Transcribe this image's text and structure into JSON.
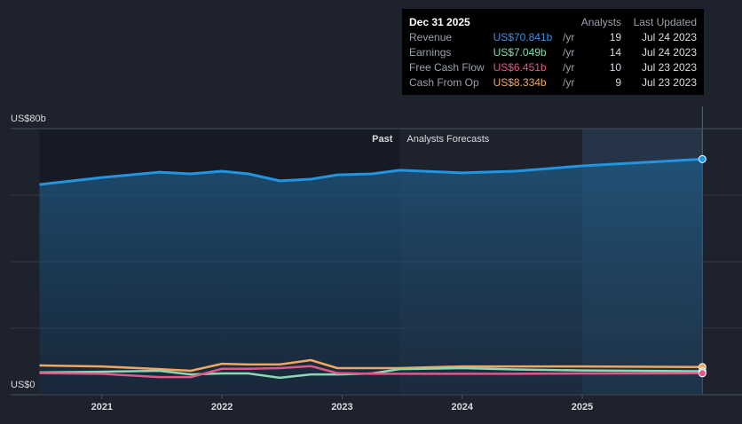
{
  "chart_data": {
    "type": "line",
    "x": [
      2020.48,
      2021,
      2021.48,
      2021.74,
      2022,
      2022.22,
      2022.48,
      2022.74,
      2022.96,
      2023.25,
      2023.48,
      2024,
      2024.44,
      2025,
      2026
    ],
    "series": [
      {
        "name": "Revenue",
        "color": "#2394df",
        "values": [
          63.2,
          65.3,
          66.9,
          66.4,
          67.2,
          66.4,
          64.3,
          64.8,
          66.1,
          66.4,
          67.5,
          66.7,
          67.2,
          68.8,
          70.841
        ]
      },
      {
        "name": "Cash From Op",
        "color": "#f0a860",
        "values": [
          8.8,
          8.5,
          7.7,
          7.2,
          9.3,
          9.1,
          9.1,
          10.4,
          8.0,
          8.0,
          8.0,
          8.5,
          8.5,
          8.5,
          8.334
        ]
      },
      {
        "name": "Earnings",
        "color": "#8fd6b6",
        "values": [
          6.7,
          6.9,
          7.2,
          6.1,
          6.4,
          6.4,
          5.1,
          6.1,
          6.1,
          6.4,
          7.7,
          8.0,
          7.6,
          7.3,
          7.049
        ]
      },
      {
        "name": "Free Cash Flow",
        "color": "#e0588a",
        "values": [
          6.5,
          6.3,
          5.3,
          5.3,
          7.8,
          7.8,
          8.0,
          8.6,
          6.5,
          6.3,
          6.3,
          6.3,
          6.3,
          6.4,
          6.451
        ]
      }
    ],
    "xlim": [
      2020.24,
      2026.33
    ],
    "xticks": [
      2021,
      2022,
      2023,
      2024,
      2025
    ],
    "ylim": [
      0,
      80
    ],
    "yticks": [
      {
        "value": 0,
        "label": "US$0"
      },
      {
        "value": 80,
        "label": "US$80b"
      }
    ],
    "minor_gridlines": [
      20,
      40,
      60
    ],
    "forecast_start": 2023.48,
    "past_label": "Past",
    "forecast_label": "Analysts Forecasts",
    "tooltip": {
      "header": [
        "Dec 31 2025",
        "Analysts",
        "Last Updated"
      ],
      "rows": [
        [
          "Revenue",
          "US$70.841b",
          "/yr",
          "19",
          "Jul 24 2023"
        ],
        [
          "Earnings",
          "US$7.049b",
          "/yr",
          "14",
          "Jul 24 2023"
        ],
        [
          "Free Cash Flow",
          "US$6.451b",
          "/yr",
          "10",
          "Jul 23 2023"
        ],
        [
          "Cash From Op",
          "US$8.334b",
          "/yr",
          "9",
          "Jul 23 2023"
        ]
      ],
      "colors": [
        "#3d8fe6",
        "#7ee0b0",
        "#e0588a",
        "#f0a860"
      ]
    }
  }
}
